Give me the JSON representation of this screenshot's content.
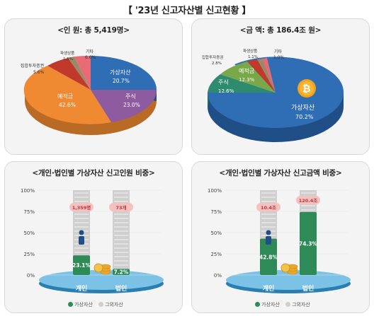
{
  "page_title": "【 '23년 신고자산별 신고현황 】",
  "colors": {
    "virtual": "#2e8b57",
    "other": "#cfcfcf",
    "pie_virtual": "#2f6eb5",
    "pie_stock": "#8e5aa0",
    "pie_deposit": "#ef8a33",
    "pie_collective": "#c0392b",
    "pie_derivative": "#9a8a6a",
    "pie_etc": "#e86a75",
    "pie2_stock": "#2e8b6e",
    "pie2_deposit": "#79a84a"
  },
  "chart_data": [
    {
      "type": "pie",
      "title": "<인  원: 총 5,419명>",
      "slices": [
        {
          "label": "가상자산",
          "value": 20.7,
          "text": "20.7%"
        },
        {
          "label": "주식",
          "value": 23.0,
          "text": "23.0%"
        },
        {
          "label": "예적금",
          "value": 42.6,
          "text": "42.6%"
        },
        {
          "label": "집합투자증권",
          "value": 5.6,
          "text": "5.6%"
        },
        {
          "label": "파생상품",
          "value": 1.5,
          "text": "1.5%"
        },
        {
          "label": "기타",
          "value": 6.6,
          "text": "6.6%"
        }
      ]
    },
    {
      "type": "pie",
      "title": "<금  액: 총 186.4조 원>",
      "slices": [
        {
          "label": "가상자산",
          "value": 70.2,
          "text": "70.2%"
        },
        {
          "label": "주식",
          "value": 12.6,
          "text": "12.6%"
        },
        {
          "label": "예적금",
          "value": 12.3,
          "text": "12.3%"
        },
        {
          "label": "집합투자증권",
          "value": 2.8,
          "text": "2.8%"
        },
        {
          "label": "파생상품",
          "value": 1.1,
          "text": "1.1%"
        },
        {
          "label": "기타",
          "value": 1.0,
          "text": "1.0%"
        }
      ]
    },
    {
      "type": "bar",
      "title": "<개인·법인별 가상자산 신고인원 비중>",
      "categories": [
        "개인",
        "법인"
      ],
      "yticks": [
        "100%",
        "75%",
        "50%",
        "25%",
        "0%"
      ],
      "ylim": [
        0,
        100
      ],
      "values": [
        23.1,
        7.2
      ],
      "value_labels": [
        "23.1%",
        "7.2%"
      ],
      "callouts": [
        "1,359명",
        "73개"
      ]
    },
    {
      "type": "bar",
      "title": "<개인·법인별 가상자산 신고금액 비중>",
      "categories": [
        "개인",
        "법인"
      ],
      "yticks": [
        "100%",
        "75%",
        "50%",
        "25%",
        "0%"
      ],
      "ylim": [
        0,
        100
      ],
      "values": [
        42.8,
        74.3
      ],
      "value_labels": [
        "42.8%",
        "74.3%"
      ],
      "callouts": [
        "10.4조",
        "120.4조"
      ]
    }
  ],
  "legend": {
    "virtual": "가상자산",
    "other": "그외자산"
  }
}
